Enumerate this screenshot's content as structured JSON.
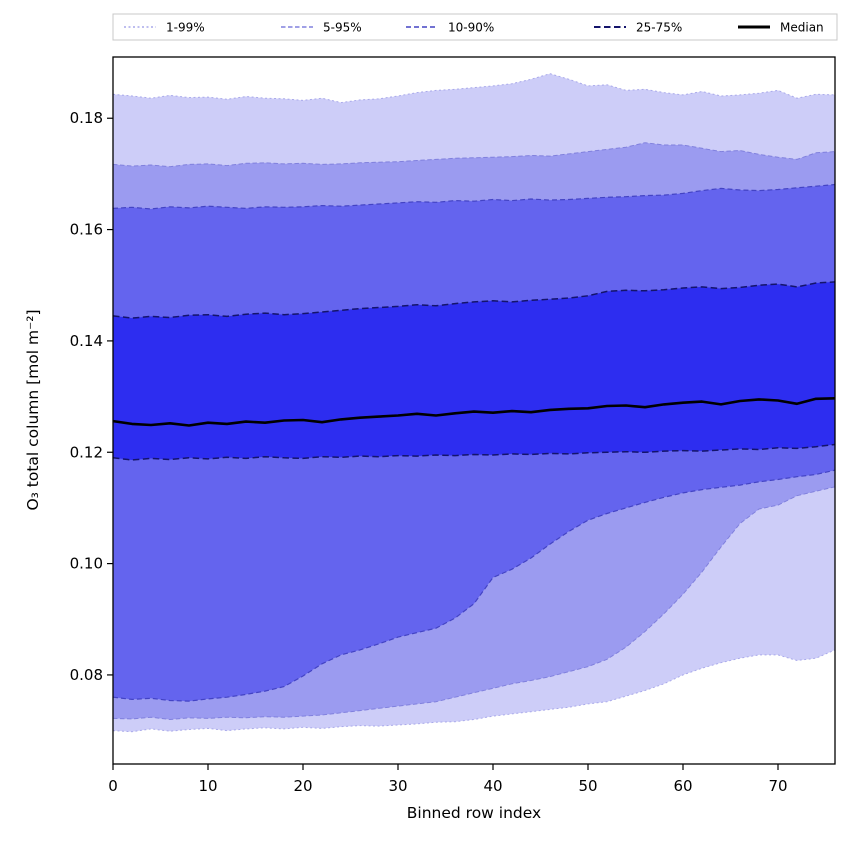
{
  "chart_data": {
    "type": "area",
    "title": "",
    "xlabel": "Binned row index",
    "ylabel": "O₃ total column [mol m⁻²]",
    "xlim": [
      0,
      76
    ],
    "ylim": [
      0.064,
      0.191
    ],
    "x_ticks": [
      0,
      10,
      20,
      30,
      40,
      50,
      60,
      70
    ],
    "y_ticks": [
      0.08,
      0.1,
      0.12,
      0.14,
      0.16,
      0.18
    ],
    "grid": false,
    "legend_position": "top-outside-expanded",
    "background_color": "#ffffff",
    "x": [
      0,
      2,
      4,
      6,
      8,
      10,
      12,
      14,
      16,
      18,
      20,
      22,
      24,
      26,
      28,
      30,
      32,
      34,
      36,
      38,
      40,
      42,
      44,
      46,
      48,
      50,
      52,
      54,
      56,
      58,
      60,
      62,
      64,
      66,
      68,
      70,
      72,
      74,
      76
    ],
    "percentiles": {
      "p1": [
        0.07,
        0.0698,
        0.0703,
        0.0699,
        0.0702,
        0.0704,
        0.07,
        0.0703,
        0.0705,
        0.0703,
        0.0706,
        0.0704,
        0.0707,
        0.0709,
        0.0708,
        0.071,
        0.0712,
        0.0715,
        0.0716,
        0.072,
        0.0726,
        0.073,
        0.0734,
        0.0738,
        0.0742,
        0.0748,
        0.0752,
        0.0762,
        0.0772,
        0.0784,
        0.08,
        0.0812,
        0.0822,
        0.083,
        0.0836,
        0.0836,
        0.0826,
        0.083,
        0.0845
      ],
      "p5": [
        0.0722,
        0.0721,
        0.0724,
        0.072,
        0.0723,
        0.0722,
        0.0724,
        0.0723,
        0.0725,
        0.0724,
        0.0726,
        0.0728,
        0.0732,
        0.0736,
        0.074,
        0.0744,
        0.0748,
        0.0752,
        0.076,
        0.0768,
        0.0776,
        0.0784,
        0.079,
        0.0797,
        0.0806,
        0.0815,
        0.0828,
        0.085,
        0.0878,
        0.091,
        0.0945,
        0.0985,
        0.103,
        0.1072,
        0.1098,
        0.1105,
        0.1122,
        0.113,
        0.1138
      ],
      "p10": [
        0.076,
        0.0756,
        0.0758,
        0.0754,
        0.0753,
        0.0757,
        0.076,
        0.0765,
        0.0771,
        0.0779,
        0.0798,
        0.082,
        0.0836,
        0.0845,
        0.0856,
        0.0868,
        0.0876,
        0.0884,
        0.0902,
        0.0928,
        0.0975,
        0.099,
        0.101,
        0.1035,
        0.1058,
        0.1078,
        0.109,
        0.11,
        0.111,
        0.1119,
        0.1127,
        0.1133,
        0.1137,
        0.1141,
        0.1147,
        0.1151,
        0.1156,
        0.116,
        0.1168
      ],
      "p25": [
        0.119,
        0.1186,
        0.1189,
        0.1187,
        0.119,
        0.1188,
        0.1191,
        0.1189,
        0.1192,
        0.119,
        0.1189,
        0.1192,
        0.1191,
        0.1193,
        0.1192,
        0.1194,
        0.1193,
        0.1195,
        0.1194,
        0.1196,
        0.1195,
        0.1197,
        0.1196,
        0.1198,
        0.1197,
        0.1199,
        0.12,
        0.1201,
        0.12,
        0.1202,
        0.1203,
        0.1202,
        0.1204,
        0.1206,
        0.1205,
        0.1208,
        0.1207,
        0.121,
        0.1214
      ],
      "median": [
        0.1256,
        0.1251,
        0.1249,
        0.1252,
        0.1248,
        0.1253,
        0.1251,
        0.1255,
        0.1253,
        0.1257,
        0.1258,
        0.1254,
        0.1259,
        0.1262,
        0.1264,
        0.1266,
        0.1269,
        0.1266,
        0.127,
        0.1273,
        0.1271,
        0.1274,
        0.1272,
        0.1276,
        0.1278,
        0.1279,
        0.1283,
        0.1284,
        0.1281,
        0.1286,
        0.1289,
        0.1291,
        0.1286,
        0.1292,
        0.1295,
        0.1293,
        0.1287,
        0.1296,
        0.1297
      ],
      "p75": [
        0.1445,
        0.1441,
        0.1444,
        0.1442,
        0.1446,
        0.1447,
        0.1444,
        0.1448,
        0.145,
        0.1447,
        0.1449,
        0.1452,
        0.1455,
        0.1458,
        0.146,
        0.1462,
        0.1465,
        0.1463,
        0.1467,
        0.147,
        0.1472,
        0.147,
        0.1473,
        0.1475,
        0.1477,
        0.1481,
        0.1489,
        0.1491,
        0.149,
        0.1492,
        0.1495,
        0.1497,
        0.1494,
        0.1496,
        0.15,
        0.1502,
        0.1497,
        0.1504,
        0.1506
      ],
      "p90": [
        0.1638,
        0.164,
        0.1637,
        0.1641,
        0.1639,
        0.1642,
        0.164,
        0.1638,
        0.1641,
        0.164,
        0.1641,
        0.1643,
        0.1642,
        0.1644,
        0.1646,
        0.1648,
        0.165,
        0.1649,
        0.1652,
        0.1651,
        0.1654,
        0.1652,
        0.1655,
        0.1653,
        0.1654,
        0.1656,
        0.1658,
        0.1659,
        0.1661,
        0.1662,
        0.1665,
        0.167,
        0.1674,
        0.1671,
        0.167,
        0.1672,
        0.1675,
        0.1678,
        0.1681
      ],
      "p95": [
        0.1717,
        0.1714,
        0.1716,
        0.1713,
        0.1717,
        0.1718,
        0.1715,
        0.1719,
        0.172,
        0.1718,
        0.1719,
        0.1717,
        0.1718,
        0.172,
        0.1721,
        0.1722,
        0.1724,
        0.1726,
        0.1728,
        0.1729,
        0.173,
        0.1731,
        0.1733,
        0.1732,
        0.1736,
        0.174,
        0.1744,
        0.1748,
        0.1756,
        0.1752,
        0.1752,
        0.1746,
        0.174,
        0.1742,
        0.1735,
        0.173,
        0.1726,
        0.1738,
        0.174
      ],
      "p99": [
        0.1843,
        0.184,
        0.1836,
        0.1841,
        0.1837,
        0.1838,
        0.1834,
        0.1839,
        0.1836,
        0.1835,
        0.1832,
        0.1836,
        0.1828,
        0.1833,
        0.1835,
        0.184,
        0.1846,
        0.185,
        0.1852,
        0.1855,
        0.1858,
        0.1862,
        0.187,
        0.188,
        0.187,
        0.1858,
        0.186,
        0.185,
        0.1852,
        0.1846,
        0.1842,
        0.1848,
        0.184,
        0.1842,
        0.1845,
        0.185,
        0.1836,
        0.1843,
        0.1842
      ]
    },
    "bands": [
      {
        "label": "1-99%",
        "lower": "p1",
        "upper": "p99",
        "fill": "#cdcdf8",
        "edge": "#a9a9ea",
        "dash": "2 2.5",
        "edge_width": 1
      },
      {
        "label": "5-95%",
        "lower": "p5",
        "upper": "p95",
        "fill": "#9b9bf0",
        "edge": "#8080dd",
        "dash": "4.5 2.5",
        "edge_width": 1
      },
      {
        "label": "10-90%",
        "lower": "p10",
        "upper": "p90",
        "fill": "#6464ee",
        "edge": "#4343c4",
        "dash": "5 3",
        "edge_width": 1.2
      },
      {
        "label": "25-75%",
        "lower": "p25",
        "upper": "p75",
        "fill": "#2d2df0",
        "edge": "#14146b",
        "dash": "6.5 3.5",
        "edge_width": 1.5
      }
    ],
    "median_style": {
      "label": "Median",
      "color": "#000000",
      "width": 2.6
    }
  }
}
